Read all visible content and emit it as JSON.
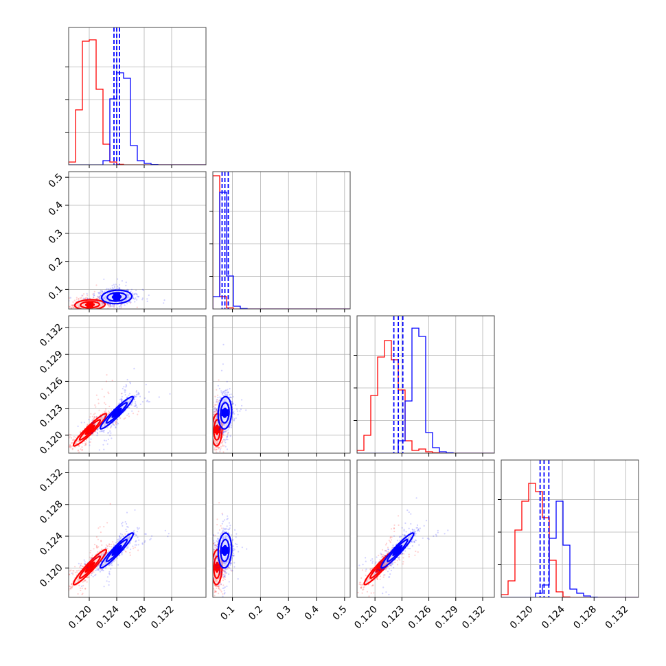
{
  "chart_data": {
    "type": "corner",
    "parameters": 4,
    "colors": {
      "series_a": "#ff0000",
      "series_b": "#0000ff"
    },
    "grid": true,
    "ticks": {
      "p0": {
        "values": [
          0.12,
          0.124,
          0.128,
          0.132
        ],
        "labels": [
          "0.120",
          "0.124",
          "0.128",
          "0.132"
        ],
        "range": [
          0.117,
          0.137
        ]
      },
      "p1": {
        "values": [
          0.1,
          0.2,
          0.3,
          0.4,
          0.5
        ],
        "labels": [
          "0.1",
          "0.2",
          "0.3",
          "0.4",
          "0.5"
        ],
        "range": [
          0.03,
          0.52
        ]
      },
      "p2": {
        "values": [
          0.12,
          0.123,
          0.126,
          0.129,
          0.132
        ],
        "labels": [
          "0.120",
          "0.123",
          "0.126",
          "0.129",
          "0.132"
        ],
        "range": [
          0.118,
          0.1333
        ]
      },
      "p3": {
        "values": [
          0.12,
          0.124,
          0.128,
          0.132
        ],
        "labels": [
          "0.120",
          "0.124",
          "0.128",
          "0.132"
        ],
        "range": [
          0.1163,
          0.1336
        ]
      }
    },
    "series_a": {
      "color": "#ff0000",
      "p0_hist": {
        "edges_from": 0.117,
        "bin_width": 0.001,
        "counts": [
          0.02,
          0.4,
          0.9,
          0.91,
          0.55,
          0.15,
          0.02,
          0.003,
          0,
          0,
          0,
          0,
          0,
          0,
          0,
          0,
          0,
          0,
          0,
          0
        ]
      },
      "p1_hist": {
        "edges_from": 0.03,
        "bin_width": 0.0245,
        "counts": [
          0.97,
          0.09,
          0.008,
          0,
          0,
          0,
          0,
          0,
          0,
          0,
          0,
          0,
          0,
          0,
          0,
          0,
          0,
          0,
          0,
          0
        ]
      },
      "p2_hist": {
        "edges_from": 0.118,
        "bin_width": 0.000765,
        "counts": [
          0.02,
          0.13,
          0.42,
          0.7,
          0.82,
          0.68,
          0.46,
          0.09,
          0.02,
          0.03,
          0.01,
          0.003,
          0,
          0,
          0,
          0,
          0,
          0,
          0,
          0
        ]
      },
      "p3_hist": {
        "edges_from": 0.1163,
        "bin_width": 0.000865,
        "counts": [
          0.02,
          0.12,
          0.49,
          0.7,
          0.83,
          0.77,
          0.58,
          0.27,
          0.04,
          0.003,
          0,
          0,
          0,
          0,
          0,
          0,
          0,
          0,
          0,
          0
        ]
      },
      "means": [
        0.1201,
        0.0456,
        0.1206,
        0.1201
      ]
    },
    "series_b": {
      "color": "#0000ff",
      "p0_hist": {
        "edges_from": 0.117,
        "bin_width": 0.001,
        "counts": [
          0,
          0,
          0,
          0,
          0,
          0.03,
          0.48,
          0.67,
          0.63,
          0.14,
          0.03,
          0.01,
          0.002,
          0,
          0,
          0,
          0,
          0,
          0,
          0
        ]
      },
      "p1_hist": {
        "edges_from": 0.03,
        "bin_width": 0.0245,
        "counts": [
          0.09,
          0.85,
          0.24,
          0.02,
          0.003,
          0,
          0,
          0,
          0,
          0,
          0,
          0,
          0,
          0,
          0,
          0,
          0,
          0,
          0,
          0
        ]
      },
      "p2_hist": {
        "edges_from": 0.118,
        "bin_width": 0.000765,
        "counts": [
          0,
          0,
          0,
          0,
          0,
          0,
          0.09,
          0.38,
          0.91,
          0.85,
          0.15,
          0.04,
          0.01,
          0.003,
          0,
          0,
          0,
          0,
          0,
          0
        ]
      },
      "p3_hist": {
        "edges_from": 0.1163,
        "bin_width": 0.000865,
        "counts": [
          0,
          0,
          0,
          0,
          0,
          0.03,
          0.09,
          0.43,
          0.7,
          0.38,
          0.06,
          0.03,
          0.01,
          0.002,
          0,
          0,
          0,
          0,
          0,
          0
        ]
      },
      "means": [
        0.124,
        0.073,
        0.1225,
        0.1222
      ],
      "quantiles": {
        "p0": [
          0.1236,
          0.124,
          0.1244
        ],
        "p1": [
          0.063,
          0.073,
          0.085
        ],
        "p2": [
          0.1221,
          0.1226,
          0.1231
        ],
        "p3": [
          0.1212,
          0.1217,
          0.1223
        ]
      }
    },
    "pairs": [
      {
        "row": 1,
        "col": 0,
        "a": {
          "center": [
            0.1201,
            0.045
          ],
          "spread": [
            0.0011,
            0.009
          ],
          "corr": 0.1
        },
        "b": {
          "center": [
            0.124,
            0.073
          ],
          "spread": [
            0.0011,
            0.012
          ],
          "corr": 0.1
        }
      },
      {
        "row": 2,
        "col": 0,
        "a": {
          "center": [
            0.1201,
            0.1206
          ],
          "spread": [
            0.0012,
            0.0009
          ],
          "corr": 0.95
        },
        "b": {
          "center": [
            0.124,
            0.1225
          ],
          "spread": [
            0.0012,
            0.0009
          ],
          "corr": 0.95
        }
      },
      {
        "row": 2,
        "col": 1,
        "a": {
          "center": [
            0.045,
            0.1206
          ],
          "spread": [
            0.009,
            0.0009
          ],
          "corr": 0.1
        },
        "b": {
          "center": [
            0.073,
            0.1225
          ],
          "spread": [
            0.012,
            0.0009
          ],
          "corr": 0.1
        }
      },
      {
        "row": 3,
        "col": 0,
        "a": {
          "center": [
            0.1201,
            0.1201
          ],
          "spread": [
            0.0012,
            0.0011
          ],
          "corr": 0.95
        },
        "b": {
          "center": [
            0.124,
            0.1222
          ],
          "spread": [
            0.0012,
            0.0011
          ],
          "corr": 0.95
        }
      },
      {
        "row": 3,
        "col": 1,
        "a": {
          "center": [
            0.045,
            0.1201
          ],
          "spread": [
            0.009,
            0.0011
          ],
          "corr": 0.1
        },
        "b": {
          "center": [
            0.073,
            0.1222
          ],
          "spread": [
            0.012,
            0.0011
          ],
          "corr": 0.1
        }
      },
      {
        "row": 3,
        "col": 2,
        "a": {
          "center": [
            0.1206,
            0.1201
          ],
          "spread": [
            0.0009,
            0.0011
          ],
          "corr": 0.95
        },
        "b": {
          "center": [
            0.1225,
            0.1222
          ],
          "spread": [
            0.0009,
            0.0011
          ],
          "corr": 0.95
        }
      }
    ]
  }
}
